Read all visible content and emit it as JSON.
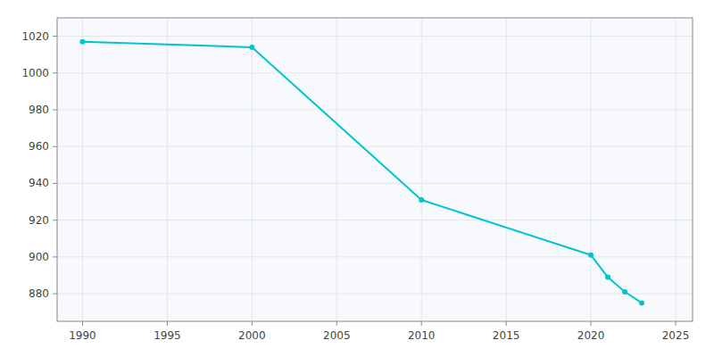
{
  "chart_data": {
    "type": "line",
    "x": [
      1990,
      2000,
      2010,
      2020,
      2021,
      2022,
      2023
    ],
    "values": [
      1017,
      1014,
      931,
      901,
      889,
      881,
      875
    ],
    "color": "#00c5cd",
    "marker": "circle",
    "xlim": [
      1988.5,
      2026
    ],
    "ylim": [
      865,
      1030
    ],
    "xticks": [
      1990,
      1995,
      2000,
      2005,
      2010,
      2015,
      2020,
      2025
    ],
    "yticks": [
      880,
      900,
      920,
      940,
      960,
      980,
      1000,
      1020
    ],
    "grid": true
  }
}
